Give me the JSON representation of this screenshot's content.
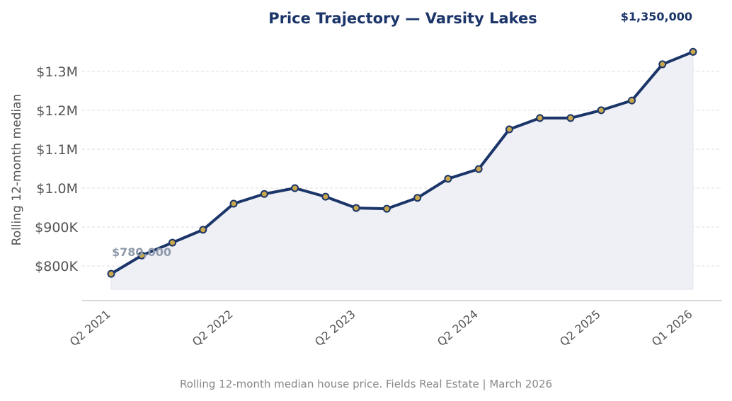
{
  "chart_data": {
    "type": "line",
    "title": "Price Trajectory — Varsity Lakes",
    "caption": "Rolling 12-month median house price. Fields Real Estate | March 2026",
    "xlabel": "",
    "ylabel": "Rolling 12-month median",
    "categories": [
      "Q2 2021",
      "Q3 2021",
      "Q4 2021",
      "Q1 2022",
      "Q2 2022",
      "Q3 2022",
      "Q4 2022",
      "Q1 2023",
      "Q2 2023",
      "Q3 2023",
      "Q4 2023",
      "Q1 2024",
      "Q2 2024",
      "Q3 2024",
      "Q4 2024",
      "Q1 2025",
      "Q2 2025",
      "Q3 2025",
      "Q4 2025",
      "Q1 2026"
    ],
    "x_tick_labels": [
      "Q2 2021",
      "Q2 2022",
      "Q2 2023",
      "Q2 2024",
      "Q2 2025",
      "Q1 2026"
    ],
    "values": [
      780000,
      827000,
      860000,
      893000,
      960000,
      985000,
      1000000,
      978000,
      949000,
      947000,
      975000,
      1024000,
      1049000,
      1151000,
      1180000,
      1180000,
      1200000,
      1225000,
      1318000,
      1350000
    ],
    "y_ticks": [
      800000,
      900000,
      1000000,
      1100000,
      1200000,
      1300000
    ],
    "y_tick_labels": [
      "$800K",
      "$900K",
      "$1.0M",
      "$1.1M",
      "$1.2M",
      "$1.3M"
    ],
    "ylim": [
      713000,
      1465000
    ],
    "grid": "horizontal dashed",
    "annotations": {
      "start": "$780,000",
      "end": "$1,350,000"
    },
    "colors": {
      "line": "#1b3569",
      "marker": "#c9a84c",
      "fill": "#eef0f5",
      "title": "#1b3569",
      "start_label": "#8e9aab"
    }
  }
}
